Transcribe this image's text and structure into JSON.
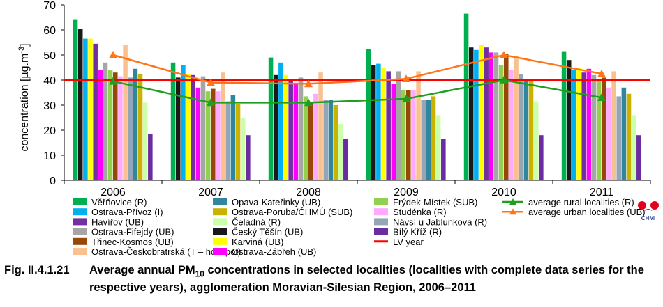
{
  "chart_data": {
    "type": "bar",
    "categories": [
      "2006",
      "2007",
      "2008",
      "2009",
      "2010",
      "2011"
    ],
    "ylabel": "concentration [µg.m-3]",
    "ylabel_main": "concentration [µg.m",
    "ylabel_sup": "-3",
    "ylabel_end": "]",
    "ylim": [
      0,
      70
    ],
    "yticks": [
      0,
      10,
      20,
      30,
      40,
      50,
      60,
      70
    ],
    "grid": false,
    "legend_position": "bottom",
    "series": [
      {
        "name": "Věřňovice (R)",
        "color": "#00b050",
        "values": [
          64,
          47,
          49,
          52.5,
          66.5,
          51.5
        ]
      },
      {
        "name": "Ostrava-Přívoz (I)",
        "color": "#00b0f0",
        "values": [
          56.5,
          46,
          47,
          46.5,
          52,
          44
        ]
      },
      {
        "name": "Havířov (UB)",
        "color": "#7030a0",
        "values": [
          54.5,
          42,
          40,
          43.5,
          53,
          43
        ]
      },
      {
        "name": "Ostrava-Fifejdy (UB)",
        "color": "#a6a6a6",
        "values": [
          47,
          41.5,
          41,
          43.5,
          51,
          42
        ]
      },
      {
        "name": "Třinec-Kosmos (UB)",
        "color": "#974706",
        "values": [
          43,
          36.5,
          31,
          36,
          50.5,
          41
        ]
      },
      {
        "name": "Ostrava-Českobratrská (T – hot spot)",
        "color": "#fac090",
        "values": [
          54,
          43,
          43,
          43.5,
          49.5,
          43.5
        ]
      },
      {
        "name": "Opava-Kateřinky (UB)",
        "color": "#31859c",
        "values": [
          44.5,
          34,
          32,
          32,
          40,
          37
        ]
      },
      {
        "name": "Ostrava-Poruba/ČHMÚ (SUB)",
        "color": "#c9b300",
        "values": [
          42.5,
          30.5,
          30,
          33.5,
          40,
          34.5
        ]
      },
      {
        "name": "Čeladná (R)",
        "color": "#ccffaa",
        "values": [
          31,
          25,
          22.5,
          26,
          31.5,
          26
        ]
      },
      {
        "name": "Český Těšín (UB)",
        "color": "#1a1a1a",
        "values": [
          60.5,
          41,
          42,
          46,
          53,
          48
        ]
      },
      {
        "name": "Karviná (UB)",
        "color": "#ffff00",
        "values": [
          56.5,
          42.5,
          42,
          45,
          54,
          45
        ]
      },
      {
        "name": "Ostrava-Zábřeh (UB)",
        "color": "#ff00ff",
        "values": [
          44,
          37,
          38.5,
          38.5,
          51,
          44.5
        ]
      },
      {
        "name": "Frýdek-Místek (SUB)",
        "color": "#92d050",
        "values": [
          44,
          35.5,
          33.5,
          36,
          46,
          39.5
        ]
      },
      {
        "name": "Studénka (R)",
        "color": "#ffaaff",
        "values": [
          41.5,
          35.5,
          34.5,
          36,
          44,
          37
        ]
      },
      {
        "name": "Návsí u Jablunkova (R)",
        "color": "#95a5b8",
        "values": [
          41,
          31.5,
          32,
          32,
          42.5,
          33.5
        ]
      },
      {
        "name": "Bílý Kříž (R)",
        "color": "#6a2ca0",
        "values": [
          18.5,
          18,
          16.5,
          16.5,
          18,
          18
        ]
      }
    ],
    "bar_order": [
      0,
      9,
      1,
      10,
      2,
      11,
      3,
      12,
      4,
      13,
      5,
      14,
      6,
      7,
      8,
      15
    ],
    "lines": [
      {
        "name": "average rural localities (R)",
        "color": "#1f9e1f",
        "marker": "triangle",
        "values": [
          39.5,
          31,
          31,
          32.5,
          40,
          33
        ]
      },
      {
        "name": "average urban localities (UB)",
        "color": "#ff7518",
        "marker": "triangle",
        "values": [
          50,
          39,
          38.5,
          40.5,
          50,
          42.5
        ]
      }
    ],
    "limit_line": {
      "name": "LV  year",
      "color": "#ff0000",
      "value": 40
    }
  },
  "caption": {
    "number": "Fig. II.4.1.21",
    "text_before": "Average annual PM",
    "text_sub": "10",
    "text_after": " concentrations in selected localities (localities with complete data series for the respective years), agglomeration Moravian-Silesian Region, 2006–2011"
  },
  "logo": {
    "text": "CHMI"
  }
}
